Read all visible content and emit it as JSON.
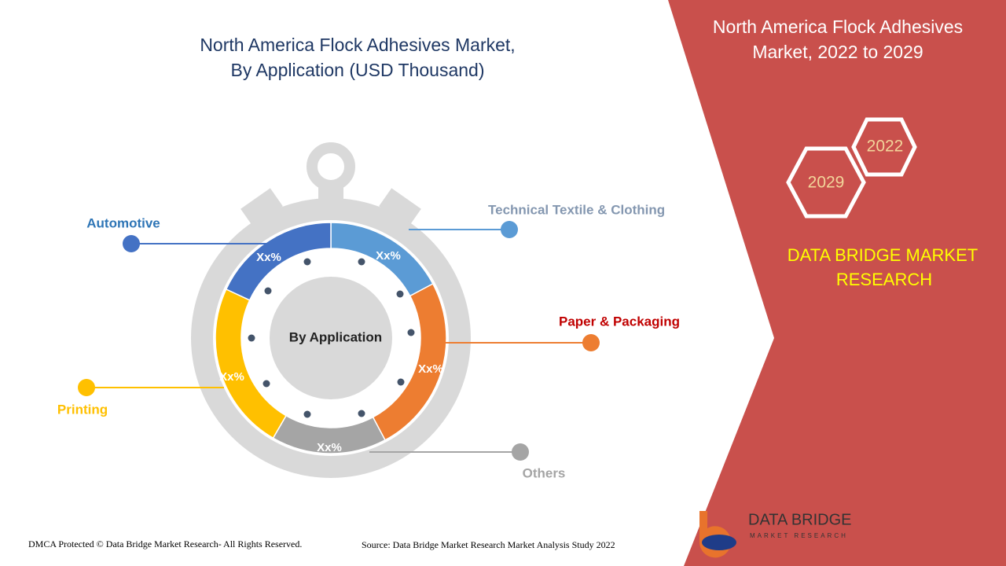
{
  "title": {
    "lines": [
      "North America Flock Adhesives Market,",
      "By Application (USD Thousand)"
    ]
  },
  "center_label": "By Application",
  "segments": [
    {
      "name": "Technical Textile & Clothing",
      "share_label": "Xx%"
    },
    {
      "name": "Paper & Packaging",
      "share_label": "Xx%"
    },
    {
      "name": "Others",
      "share_label": "Xx%"
    },
    {
      "name": "Printing",
      "share_label": "Xx%"
    },
    {
      "name": "Automotive",
      "share_label": "Xx%"
    }
  ],
  "side_panel": {
    "title_lines": [
      "North America Flock Adhesives",
      "Market, 2022 to 2029"
    ],
    "hexagons": [
      "2022",
      "2029"
    ],
    "brand_lines": [
      "DATA BRIDGE MARKET",
      "RESEARCH"
    ]
  },
  "logo": {
    "name": "DATA BRIDGE",
    "tagline": "MARKET RESEARCH"
  },
  "footer": {
    "copyright": "DMCA Protected © Data Bridge Market Research- All Rights Reserved.",
    "source": "Source: Data Bridge Market Research Market Analysis Study 2022"
  }
}
